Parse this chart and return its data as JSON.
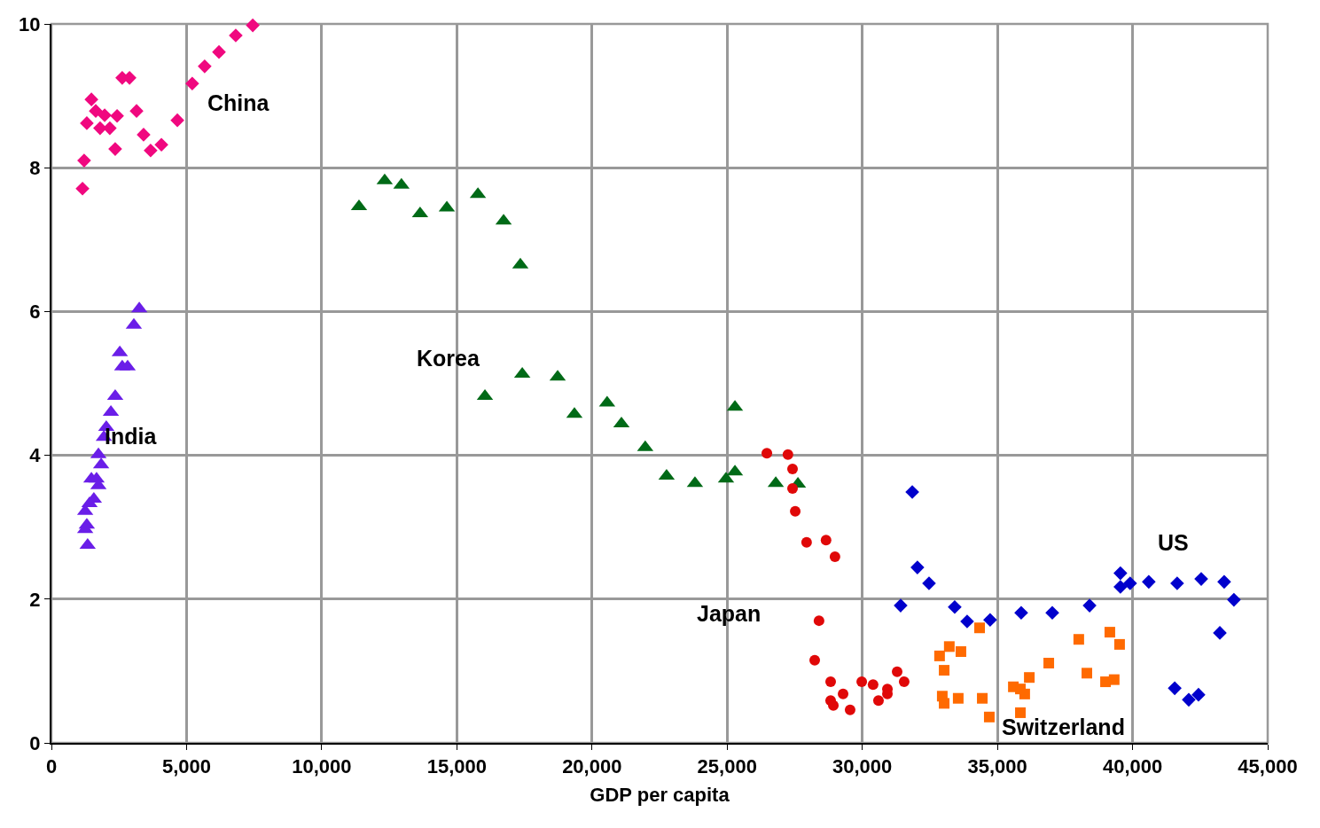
{
  "chart_data": {
    "type": "scatter",
    "xlabel": "GDP per capita",
    "xlim": [
      0,
      45000
    ],
    "ylim": [
      0,
      10
    ],
    "xticks": [
      {
        "value": 0,
        "label": "0"
      },
      {
        "value": 5000,
        "label": "5,000"
      },
      {
        "value": 10000,
        "label": "10,000"
      },
      {
        "value": 15000,
        "label": "15,000"
      },
      {
        "value": 20000,
        "label": "20,000"
      },
      {
        "value": 25000,
        "label": "25,000"
      },
      {
        "value": 30000,
        "label": "30,000"
      },
      {
        "value": 35000,
        "label": "35,000"
      },
      {
        "value": 40000,
        "label": "40,000"
      },
      {
        "value": 45000,
        "label": "45,000"
      }
    ],
    "yticks": [
      0,
      2,
      4,
      6,
      8,
      10
    ],
    "grid": true,
    "legend": false,
    "series": [
      {
        "name": "China",
        "color": "#f0087f",
        "marker": "diamond",
        "x": [
          1150,
          1210,
          1310,
          1480,
          1640,
          1800,
          1970,
          2160,
          2360,
          2430,
          2620,
          2890,
          3150,
          3410,
          3670,
          4070,
          4660,
          5210,
          5670,
          6200,
          6820,
          7450
        ],
        "values": [
          7.71,
          8.1,
          8.62,
          8.95,
          8.79,
          8.55,
          8.73,
          8.55,
          8.26,
          8.72,
          9.25,
          9.25,
          8.79,
          8.46,
          8.24,
          8.32,
          8.66,
          9.17,
          9.41,
          9.61,
          9.84,
          9.98
        ]
      },
      {
        "name": "India",
        "color": "#6a1ee8",
        "marker": "triangle",
        "x": [
          3250,
          3050,
          2530,
          2620,
          2820,
          2360,
          2200,
          2030,
          1940,
          1740,
          1840,
          1480,
          1670,
          1740,
          1570,
          1410,
          1250,
          1310,
          1250,
          1340
        ],
        "values": [
          6.04,
          5.81,
          5.43,
          5.23,
          5.23,
          4.82,
          4.6,
          4.39,
          4.25,
          4.01,
          3.87,
          3.67,
          3.67,
          3.58,
          3.39,
          3.33,
          3.22,
          3.03,
          2.97,
          2.75
        ]
      },
      {
        "name": "Korea",
        "color": "#006a17",
        "marker": "triangle",
        "x": [
          11380,
          12330,
          12950,
          13640,
          14630,
          15780,
          16730,
          17350,
          16040,
          17420,
          18730,
          19350,
          20560,
          21090,
          21970,
          22760,
          23810,
          24960,
          25290,
          25290,
          26800,
          27620
        ],
        "values": [
          7.46,
          7.82,
          7.76,
          7.36,
          7.44,
          7.63,
          7.26,
          6.65,
          4.82,
          5.13,
          5.09,
          4.57,
          4.73,
          4.44,
          4.11,
          3.71,
          3.61,
          3.67,
          3.77,
          4.67,
          3.61,
          3.6
        ]
      },
      {
        "name": "Japan",
        "color": "#e00808",
        "marker": "circle",
        "x": [
          26470,
          27250,
          27420,
          27420,
          27520,
          27940,
          28660,
          28990,
          28400,
          28240,
          28830,
          29290,
          28830,
          28930,
          29550,
          29980,
          30400,
          30600,
          30930,
          30930,
          31290,
          31550
        ],
        "values": [
          4.03,
          4.01,
          3.81,
          3.54,
          3.22,
          2.79,
          2.82,
          2.59,
          1.7,
          1.15,
          0.85,
          0.68,
          0.59,
          0.52,
          0.46,
          0.85,
          0.81,
          0.59,
          0.75,
          0.68,
          0.99,
          0.85
        ]
      },
      {
        "name": "US",
        "color": "#0000cc",
        "marker": "diamond",
        "x": [
          31850,
          32040,
          32470,
          31420,
          33420,
          33880,
          34730,
          35880,
          37030,
          38410,
          39550,
          39550,
          39910,
          40600,
          41650,
          42540,
          43390,
          43750,
          43230,
          41560,
          42080,
          42440
        ],
        "values": [
          3.49,
          2.44,
          2.22,
          1.91,
          1.89,
          1.69,
          1.71,
          1.81,
          1.81,
          1.91,
          2.36,
          2.17,
          2.22,
          2.24,
          2.22,
          2.28,
          2.24,
          1.99,
          1.53,
          0.76,
          0.6,
          0.67
        ]
      },
      {
        "name": "Switzerland",
        "color": "#ff6a00",
        "marker": "square",
        "x": [
          34340,
          33220,
          33650,
          32860,
          33030,
          32960,
          33030,
          33550,
          34440,
          34700,
          35590,
          35850,
          36010,
          36180,
          35850,
          36900,
          38010,
          38310,
          39160,
          39520,
          39000,
          39320
        ],
        "values": [
          1.6,
          1.34,
          1.27,
          1.21,
          1.01,
          0.65,
          0.55,
          0.62,
          0.62,
          0.36,
          0.78,
          0.75,
          0.68,
          0.91,
          0.42,
          1.11,
          1.44,
          0.97,
          1.54,
          1.37,
          0.85,
          0.88
        ]
      }
    ]
  }
}
